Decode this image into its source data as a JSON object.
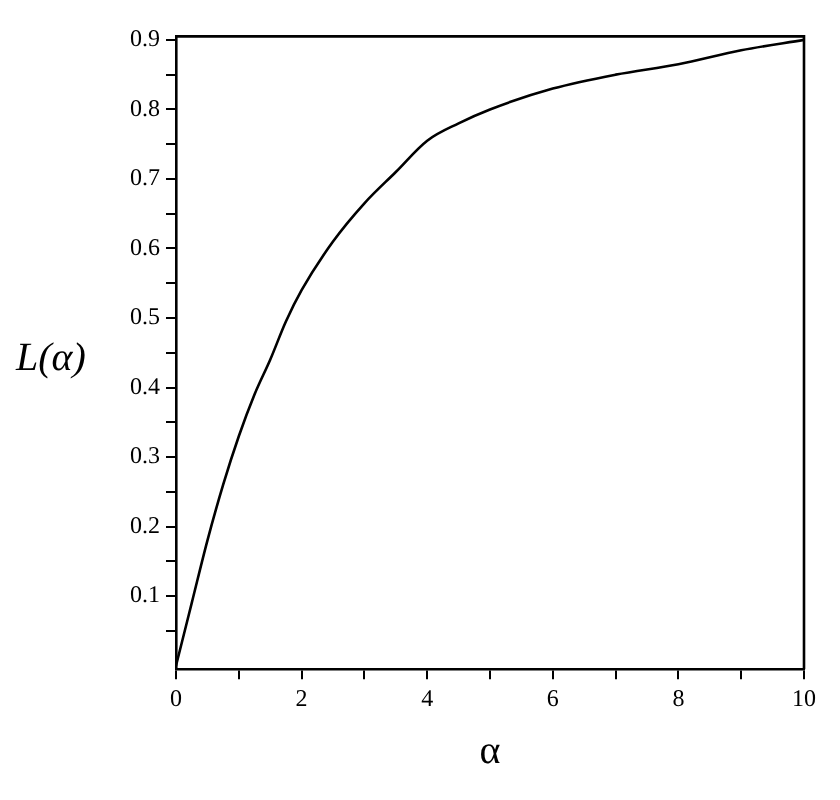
{
  "chart_data": {
    "type": "line",
    "xlabel": "α",
    "ylabel": "L(α)",
    "x": [
      0,
      0.25,
      0.5,
      0.75,
      1,
      1.25,
      1.5,
      1.75,
      2,
      2.5,
      3,
      3.5,
      4,
      4.5,
      5,
      6,
      7,
      8,
      9,
      10
    ],
    "series": [
      {
        "color": "#000000",
        "values": [
          0,
          0.09,
          0.18,
          0.26,
          0.33,
          0.39,
          0.44,
          0.495,
          0.54,
          0.61,
          0.665,
          0.71,
          0.755,
          0.78,
          0.8,
          0.83,
          0.85,
          0.865,
          0.885,
          0.9
        ]
      }
    ],
    "xlim": [
      0,
      10
    ],
    "ylim": [
      -0.005,
      0.905
    ],
    "xticks": [
      0,
      {
        "value": 1,
        "label": null
      },
      2,
      {
        "value": 3,
        "label": null
      },
      4,
      {
        "value": 5,
        "label": null
      },
      6,
      {
        "value": 7,
        "label": null
      },
      8,
      {
        "value": 9,
        "label": null
      },
      10
    ],
    "yticks": [
      {
        "value": 0.05,
        "label": null
      },
      0.1,
      {
        "value": 0.15,
        "label": null
      },
      0.2,
      {
        "value": 0.25,
        "label": null
      },
      0.3,
      {
        "value": 0.35,
        "label": null
      },
      0.4,
      {
        "value": 0.45,
        "label": null
      },
      0.5,
      {
        "value": 0.55,
        "label": null
      },
      0.6,
      {
        "value": 0.65,
        "label": null
      },
      0.7,
      {
        "value": 0.75,
        "label": null
      },
      0.8,
      {
        "value": 0.85,
        "label": null
      },
      0.9
    ],
    "grid": false,
    "legend": false,
    "marker": "none",
    "line_style": "solid"
  }
}
